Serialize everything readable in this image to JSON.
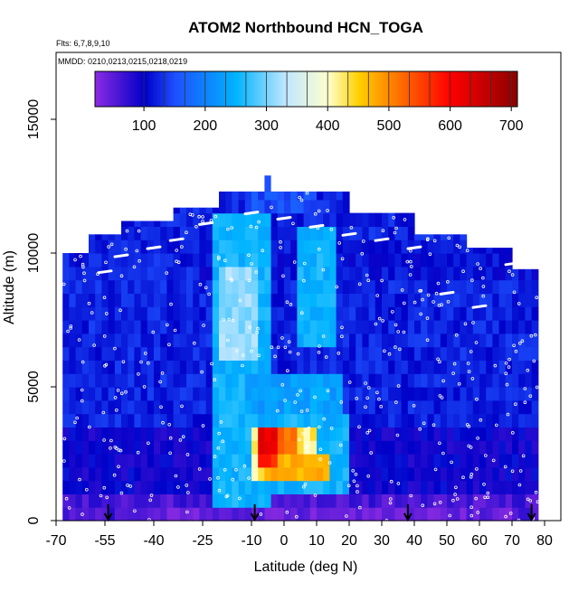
{
  "chart_data": {
    "type": "heatmap",
    "title": "ATOM2 Northbound HCN_TOGA",
    "subtitle_flights": "Flts: 6,7,8,9,10",
    "subtitle_dates": "MMDD: 0210,0213,0215,0218,0219",
    "xlabel": "Latitude (deg N)",
    "ylabel": "Altitude (m)",
    "xlim": [
      -70,
      85
    ],
    "ylim": [
      0,
      17500
    ],
    "x_ticks": [
      -70,
      -55,
      -40,
      -25,
      -10,
      0,
      10,
      20,
      30,
      40,
      50,
      60,
      70,
      80
    ],
    "y_ticks": [
      0,
      5000,
      10000,
      15000
    ],
    "colorbar": {
      "range": [
        20,
        710
      ],
      "ticks": [
        100,
        200,
        300,
        400,
        500,
        600,
        700
      ],
      "stops": [
        {
          "value": 20,
          "color": "#8a2be2"
        },
        {
          "value": 100,
          "color": "#0000c8"
        },
        {
          "value": 150,
          "color": "#1e50ff"
        },
        {
          "value": 250,
          "color": "#00b4ff"
        },
        {
          "value": 330,
          "color": "#bfe6ff"
        },
        {
          "value": 400,
          "color": "#ffffcc"
        },
        {
          "value": 450,
          "color": "#ffd000"
        },
        {
          "value": 520,
          "color": "#ff6a00"
        },
        {
          "value": 600,
          "color": "#ff0000"
        },
        {
          "value": 710,
          "color": "#8b0000"
        }
      ]
    },
    "background_value": 120,
    "regions": [
      {
        "lat": [
          -68,
          78
        ],
        "alt": [
          0,
          1000
        ],
        "value": 60
      },
      {
        "lat": [
          -68,
          78
        ],
        "alt": [
          1000,
          3500
        ],
        "value": 95
      },
      {
        "lat": [
          -45,
          70
        ],
        "alt": [
          0,
          700
        ],
        "value": 40
      },
      {
        "lat": [
          -25,
          78
        ],
        "alt": [
          9000,
          10500
        ],
        "value": 110
      },
      {
        "lat": [
          -22,
          -5
        ],
        "alt": [
          500,
          11500
        ],
        "value": 250
      },
      {
        "lat": [
          -20,
          -8
        ],
        "alt": [
          6000,
          9500
        ],
        "value": 310
      },
      {
        "lat": [
          -12,
          18
        ],
        "alt": [
          3500,
          5500
        ],
        "value": 230
      },
      {
        "lat": [
          5,
          15
        ],
        "alt": [
          6500,
          11000
        ],
        "value": 250
      },
      {
        "lat": [
          -20,
          20
        ],
        "alt": [
          800,
          3800
        ],
        "value": 250
      },
      {
        "lat": [
          -10,
          10
        ],
        "alt": [
          1500,
          3500
        ],
        "value": 420
      },
      {
        "lat": [
          -5,
          13
        ],
        "alt": [
          1500,
          2500
        ],
        "value": 470
      },
      {
        "lat": [
          -8,
          -2
        ],
        "alt": [
          2500,
          3300
        ],
        "value": 620
      },
      {
        "lat": [
          -2,
          4
        ],
        "alt": [
          2500,
          3300
        ],
        "value": 520
      },
      {
        "lat": [
          -8,
          -2
        ],
        "alt": [
          1800,
          2500
        ],
        "value": 580
      },
      {
        "lat": [
          -10,
          10
        ],
        "alt": [
          11500,
          12300
        ],
        "value": 150
      }
    ],
    "profile_latitudes": [
      -54,
      -9,
      38,
      76
    ]
  }
}
